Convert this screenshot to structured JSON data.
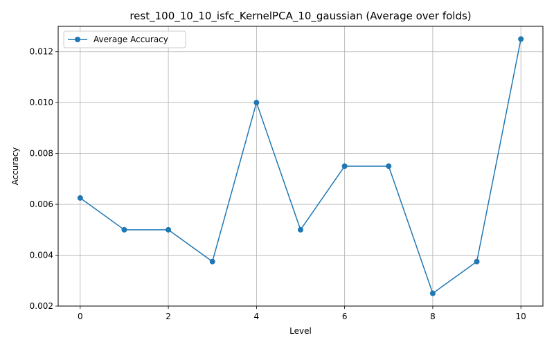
{
  "chart_data": {
    "type": "line",
    "title": "rest_100_10_10_isfc_KernelPCA_10_gaussian (Average over folds)",
    "xlabel": "Level",
    "ylabel": "Accuracy",
    "x": [
      0,
      1,
      2,
      3,
      4,
      5,
      6,
      7,
      8,
      9,
      10
    ],
    "series": [
      {
        "name": "Average Accuracy",
        "values": [
          0.00625,
          0.005,
          0.005,
          0.00375,
          0.01,
          0.005,
          0.0075,
          0.0075,
          0.0025,
          0.00375,
          0.0125
        ],
        "color": "#1f77b4",
        "marker": "circle"
      }
    ],
    "xlim": [
      -0.5,
      10.5
    ],
    "ylim": [
      0.002,
      0.013
    ],
    "xticks": [
      0,
      2,
      4,
      6,
      8,
      10
    ],
    "xtick_labels": [
      "0",
      "2",
      "4",
      "6",
      "8",
      "10"
    ],
    "yticks": [
      0.002,
      0.004,
      0.006,
      0.008,
      0.01,
      0.012
    ],
    "ytick_labels": [
      "0.002",
      "0.004",
      "0.006",
      "0.008",
      "0.010",
      "0.012"
    ],
    "grid": true,
    "legend": "upper-left"
  }
}
